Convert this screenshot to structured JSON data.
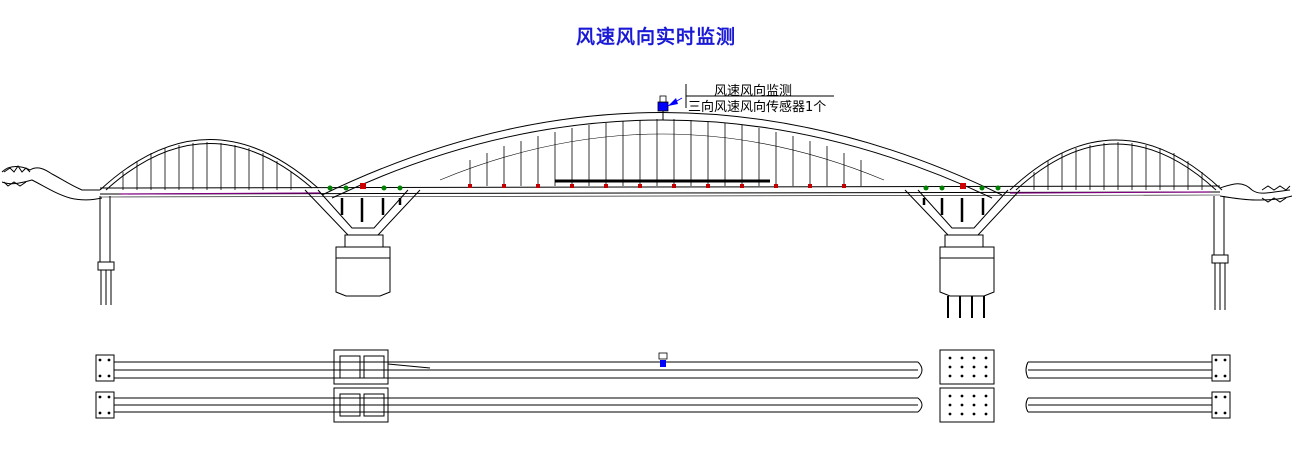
{
  "title": "风速风向实时监测",
  "callout": {
    "line1": "风速风向监测",
    "line2": "三向风速风向传感器1个"
  },
  "colors": {
    "title": "#1a1ad6",
    "structure": "#000000",
    "sensor": "#0000ff",
    "hanger_marker": "#c00000",
    "deck_markers": "#008000",
    "joint_marker": "#cc0000",
    "deck_highlight": "#800080"
  },
  "icons": {
    "sensor": "wind-sensor-icon",
    "dragon_left": "dragon-head-icon",
    "dragon_right": "dragon-tail-icon"
  }
}
